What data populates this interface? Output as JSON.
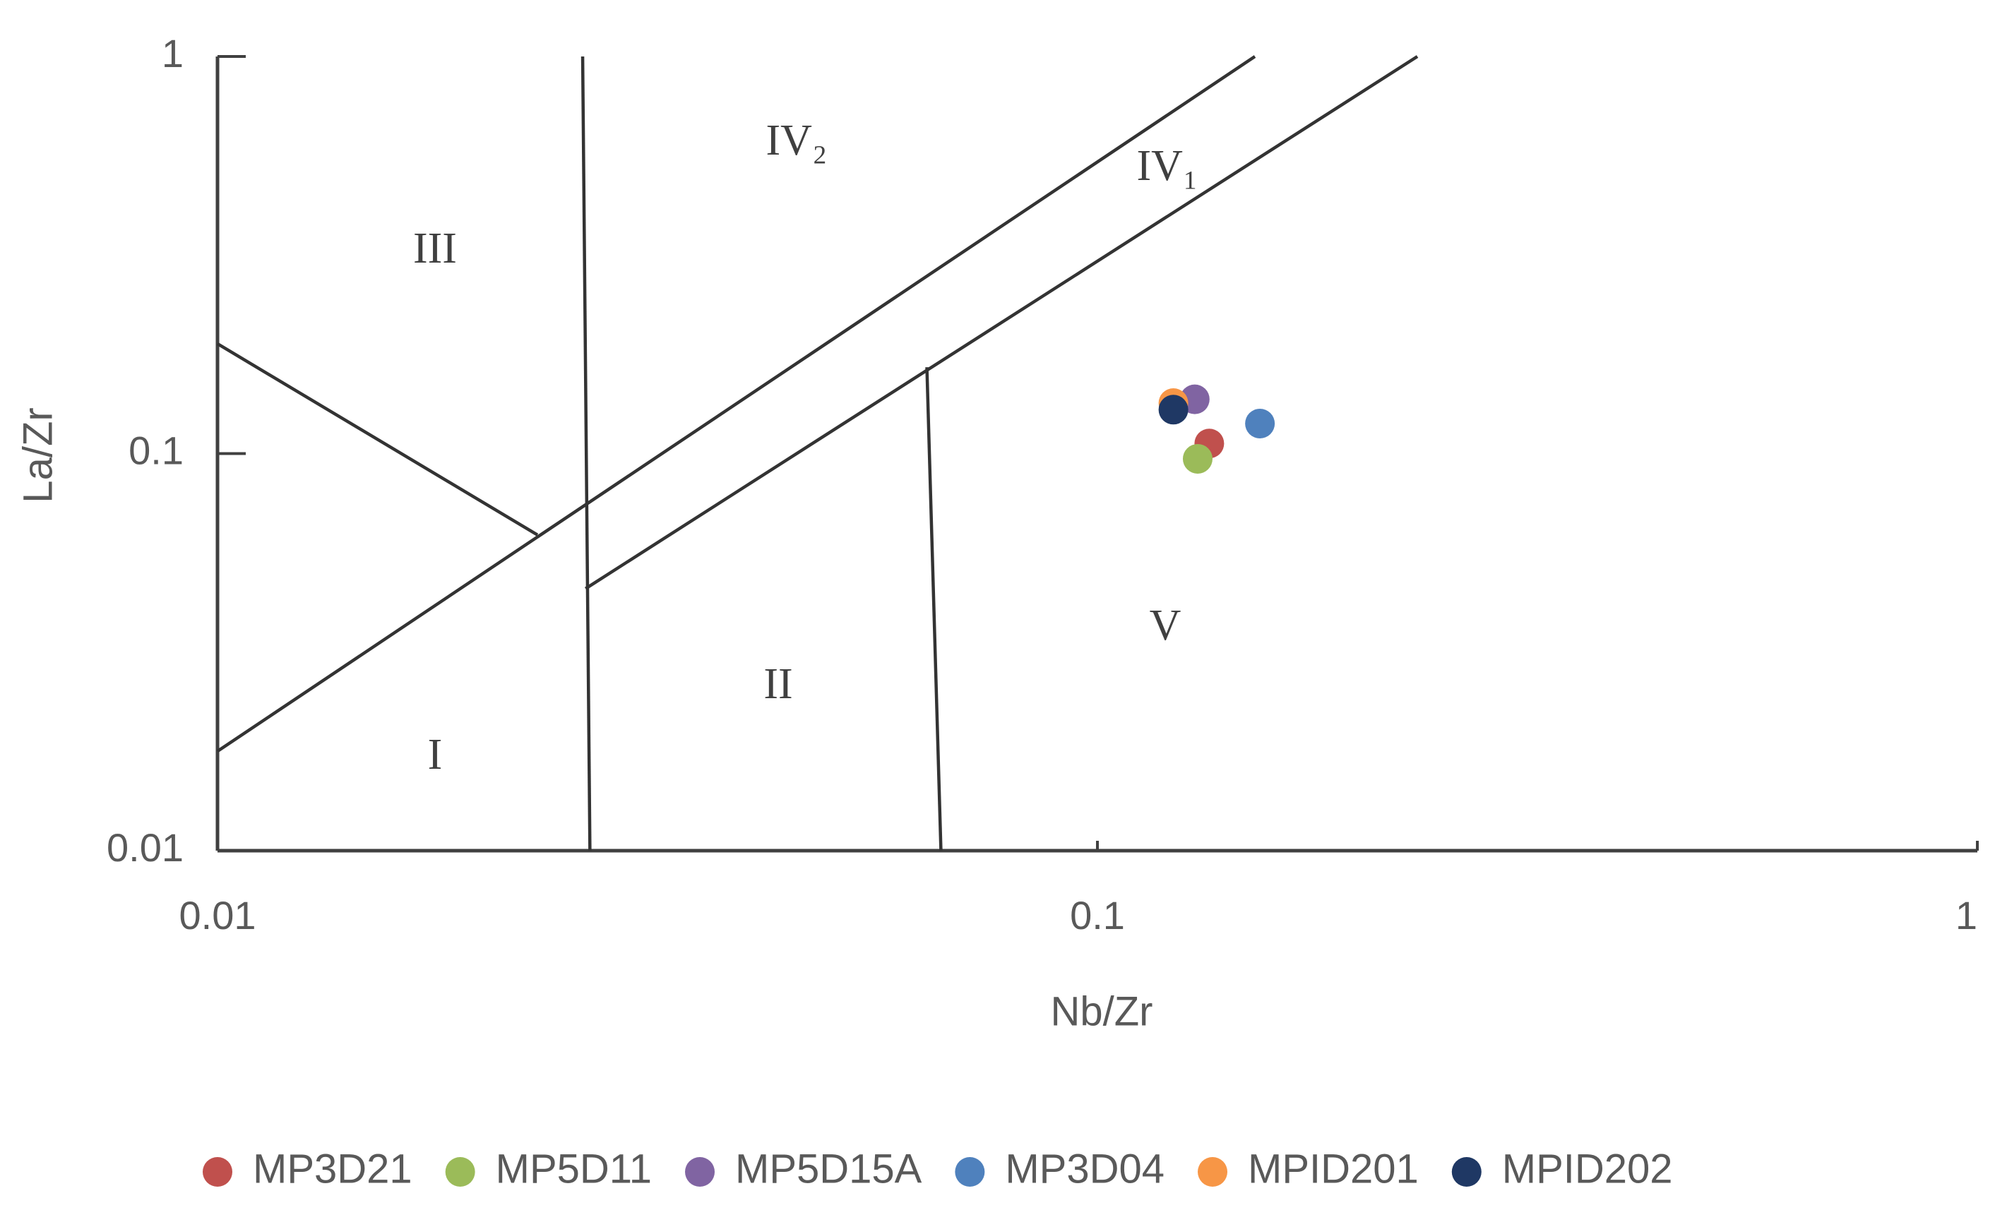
{
  "chart_data": {
    "type": "scatter",
    "x_label": "Nb/Zr",
    "y_label": "La/Zr",
    "xlog": true,
    "ylog": true,
    "xlim": [
      0.01,
      1
    ],
    "ylim": [
      0.01,
      1
    ],
    "xticks": [
      0.01,
      0.1,
      1
    ],
    "yticks": [
      0.01,
      0.1,
      1
    ],
    "series": [
      {
        "name": "MP3D21",
        "color": "#c0504d",
        "x": [
          0.134
        ],
        "values": [
          0.106
        ]
      },
      {
        "name": "MP5D11",
        "color": "#9bbb59",
        "x": [
          0.13
        ],
        "values": [
          0.097
        ]
      },
      {
        "name": "MP5D15A",
        "color": "#8064a2",
        "x": [
          0.129
        ],
        "values": [
          0.137
        ]
      },
      {
        "name": "MP3D04",
        "color": "#4f81bd",
        "x": [
          0.153
        ],
        "values": [
          0.119
        ]
      },
      {
        "name": "MPID201",
        "color": "#f79646",
        "x": [
          0.122
        ],
        "values": [
          0.134
        ]
      },
      {
        "name": "MPID202",
        "color": "#1f3864",
        "x": [
          0.122
        ],
        "values": [
          0.129
        ]
      }
    ],
    "boundaries": [
      {
        "x": [
          0.026,
          0.0265
        ],
        "y": [
          1,
          0.01
        ]
      },
      {
        "x": [
          0.01,
          0.0231
        ],
        "y": [
          0.189,
          0.0624
        ]
      },
      {
        "x": [
          0.01,
          0.151
        ],
        "y": [
          0.0178,
          1
        ]
      },
      {
        "x": [
          0.0262,
          0.231
        ],
        "y": [
          0.0457,
          1
        ]
      },
      {
        "x": [
          0.064,
          0.0664
        ],
        "y": [
          0.165,
          0.01
        ]
      }
    ],
    "annotations": [
      "III",
      "IV₂",
      "IV₁",
      "II",
      "I",
      "V"
    ]
  }
}
